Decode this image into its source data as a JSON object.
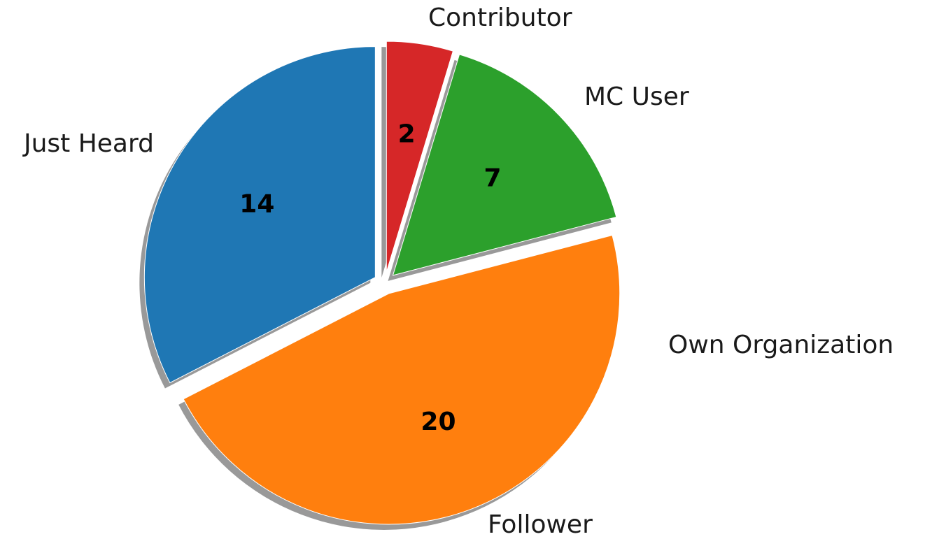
{
  "chart_data": {
    "type": "pie",
    "categories": [
      "Just Heard",
      "Follower",
      "Own Organization",
      "MC User",
      "Contributor"
    ],
    "values": [
      14,
      20,
      0,
      7,
      2
    ],
    "colors": [
      "#1f77b4",
      "#ff7f0e",
      "#2ca02c",
      "#2ca02c",
      "#d62728"
    ],
    "start_angle": 90,
    "shadow": true,
    "exploded": true
  }
}
